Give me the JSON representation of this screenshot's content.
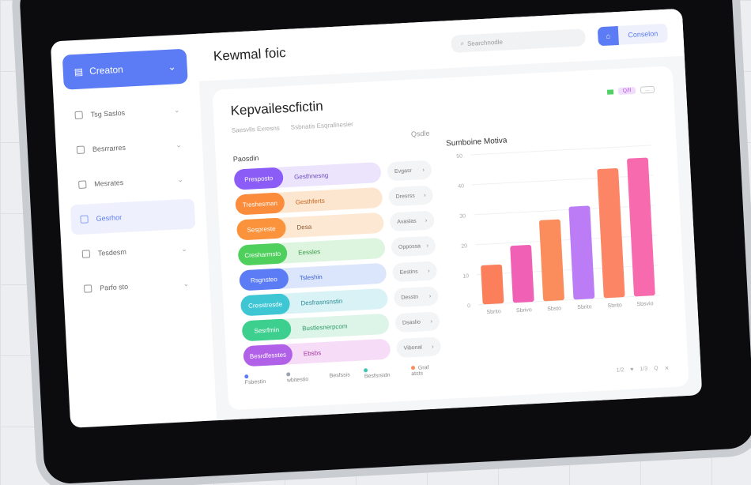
{
  "search": {
    "placeholder": "Searchnodle"
  },
  "sidebar": {
    "top_label": "Creaton",
    "items": [
      {
        "label": "Tsg Saslos",
        "icon": "folder-icon"
      },
      {
        "label": "Besrrarres",
        "icon": "file-icon"
      },
      {
        "label": "Mesrates",
        "icon": "stack-icon"
      },
      {
        "label": "Gesrhor",
        "icon": "clipboard-icon",
        "active": true
      },
      {
        "label": "Tesdesm",
        "icon": "doc-icon"
      },
      {
        "label": "Parfo sto",
        "icon": "calendar-icon"
      }
    ]
  },
  "header": {
    "title": "Kewmal foic",
    "button_label": "Conselon"
  },
  "card": {
    "title": "Kepvailescfictin",
    "subtitle": [
      "Saesvlls Exresns",
      "Ssbnatis Esqrallnesier"
    ],
    "badge_label": "Q/ll",
    "badge2_label": "..."
  },
  "list": {
    "heading": "Paosdin",
    "filter": "Qsdle",
    "rows": [
      {
        "chip": "Presposto",
        "label": "Gesthnesng",
        "action": "Evgasr",
        "color": "#8b5cf6",
        "bg": "#ece4fd",
        "text": "#6b4bb8"
      },
      {
        "chip": "Treshesman",
        "label": "Gesthferts",
        "action": "Dresrss",
        "color": "#fb8c3c",
        "bg": "#fde6d0",
        "text": "#c5651d"
      },
      {
        "chip": "Sespreste",
        "label": "Desa",
        "action": "Avaslas",
        "color": "#fb923c",
        "bg": "#fde8d4",
        "text": "#8a5a30"
      },
      {
        "chip": "Cresharmsto",
        "label": "Eessles",
        "action": "Oppossa",
        "color": "#4fcf5c",
        "bg": "#ddf5df",
        "text": "#3c9a48"
      },
      {
        "chip": "Rsgnsteo",
        "label": "Tsleshin",
        "action": "Eestins",
        "color": "#5b7cf5",
        "bg": "#dbe6fc",
        "text": "#3d5fd0"
      },
      {
        "chip": "Cresstresde",
        "label": "Desfrasnsnstin",
        "action": "Desstn",
        "color": "#3ec6d4",
        "bg": "#d8f2f5",
        "text": "#2b8d99"
      },
      {
        "chip": "Sesrfmin",
        "label": "Bustlesnerpcom",
        "action": "Dsaslio",
        "color": "#3dcf8e",
        "bg": "#dcf5e8",
        "text": "#2f9a6a"
      },
      {
        "chip": "Besrdfesstes",
        "label": "Ebsbs",
        "action": "Vibonal",
        "color": "#b061e8",
        "bg": "#f7dcf8",
        "text": "#a3379b"
      }
    ],
    "legend": [
      {
        "label": "Fsbestin",
        "color": "#5b7cf5"
      },
      {
        "label": "wbitestio",
        "color": "#9aa3b5"
      },
      {
        "label": "Besfssis",
        "color": ""
      },
      {
        "label": "Besfsrsidn",
        "color": "#3ec6b4"
      },
      {
        "label": "Graf atsts",
        "color": "#fb8c5c"
      }
    ]
  },
  "chart_data": {
    "type": "bar",
    "title": "Sumboine Motiva",
    "categories": [
      "Sbrito",
      "Sbrivo",
      "Sbsto",
      "Sbrito",
      "Sbrito",
      "Sbsvio"
    ],
    "values": [
      13,
      19,
      27,
      31,
      43,
      46
    ],
    "colors": [
      "#fb7f5a",
      "#f061b6",
      "#fb8c5c",
      "#bb7cf6",
      "#fb8565",
      "#f76aae"
    ],
    "yticks": [
      0,
      10,
      20,
      30,
      40,
      50
    ],
    "ylim": [
      0,
      50
    ],
    "grid": true
  },
  "chart_footer": [
    "1/2",
    "♥",
    "1/3",
    "Q",
    "✕"
  ]
}
